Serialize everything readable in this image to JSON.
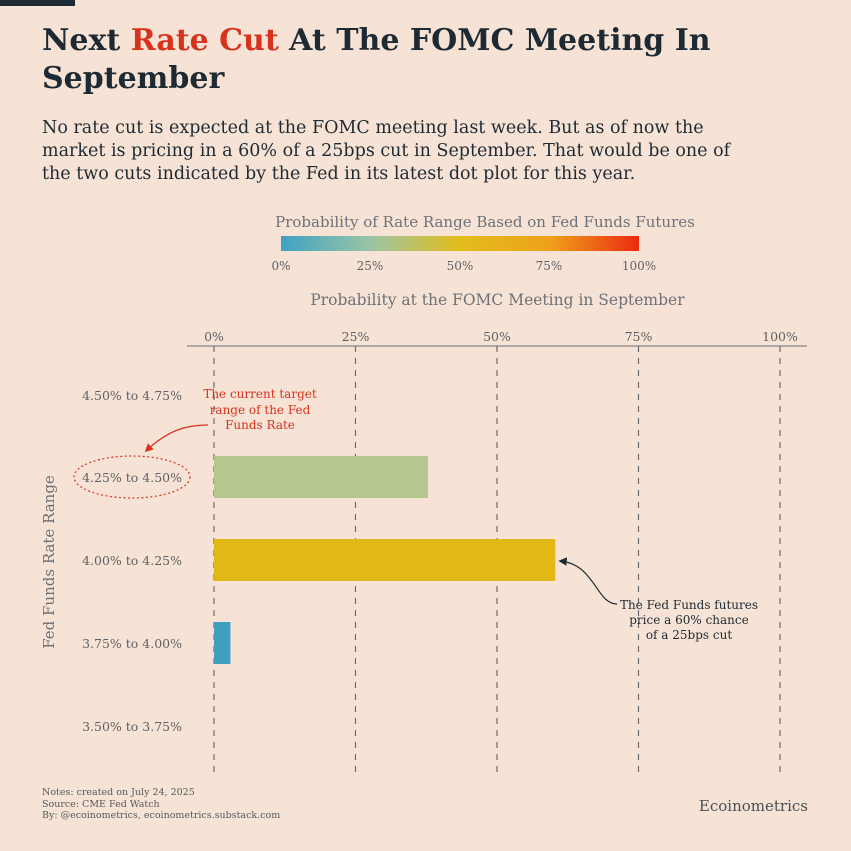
{
  "title": {
    "part1": "Next ",
    "accent": "Rate Cut",
    "part2": " At The FOMC Meeting In September"
  },
  "subtitle": "No rate cut is expected at the FOMC meeting last week. But as of now the market is pricing in a 60% of a 25bps cut in September. That would be one of the two cuts indicated by the Fed in its latest dot plot for this year.",
  "legend": {
    "title": "Probability of Rate Range Based on Fed Funds Futures",
    "ticks": [
      "0%",
      "25%",
      "50%",
      "75%",
      "100%"
    ],
    "colors": [
      "#3fa3c4",
      "#9bc4a4",
      "#e3bd1c",
      "#eea11a",
      "#ec2a10"
    ]
  },
  "chart_data": {
    "type": "bar",
    "orientation": "horizontal",
    "title": "Probability at the FOMC Meeting in September",
    "xlabel": "Probability at the FOMC Meeting in September",
    "ylabel": "Fed Funds Rate Range",
    "xlim": [
      0,
      100
    ],
    "xticks": [
      0,
      25,
      50,
      75,
      100
    ],
    "xtick_labels": [
      "0%",
      "25%",
      "50%",
      "75%",
      "100%"
    ],
    "categories": [
      "4.50% to 4.75%",
      "4.25% to 4.50%",
      "4.00% to 4.25%",
      "3.75% to 4.00%",
      "3.50% to 3.75%"
    ],
    "values": [
      0,
      37.8,
      60.3,
      2.9,
      0
    ],
    "bar_colors": [
      "#b5c78f",
      "#b5c78f",
      "#e2b817",
      "#3e9fbf",
      "#3e9fbf"
    ],
    "grid": "vertical dashed",
    "highlight_category": "4.25% to 4.50%",
    "annotations": [
      {
        "target": "4.25% to 4.50%",
        "text": [
          "The current target",
          "range of the Fed",
          "Funds Rate"
        ],
        "color": "#d8321d"
      },
      {
        "target": "4.00% to 4.25%",
        "text": [
          "The Fed Funds futures",
          "price a 60% chance",
          "of a 25bps cut"
        ],
        "color": "#1e2a33"
      }
    ]
  },
  "notes": [
    "Notes: created on July 24, 2025",
    "Source: CME Fed Watch",
    "By: @ecoinometrics, ecoinometrics.substack.com"
  ],
  "brand": "Ecoinometrics"
}
